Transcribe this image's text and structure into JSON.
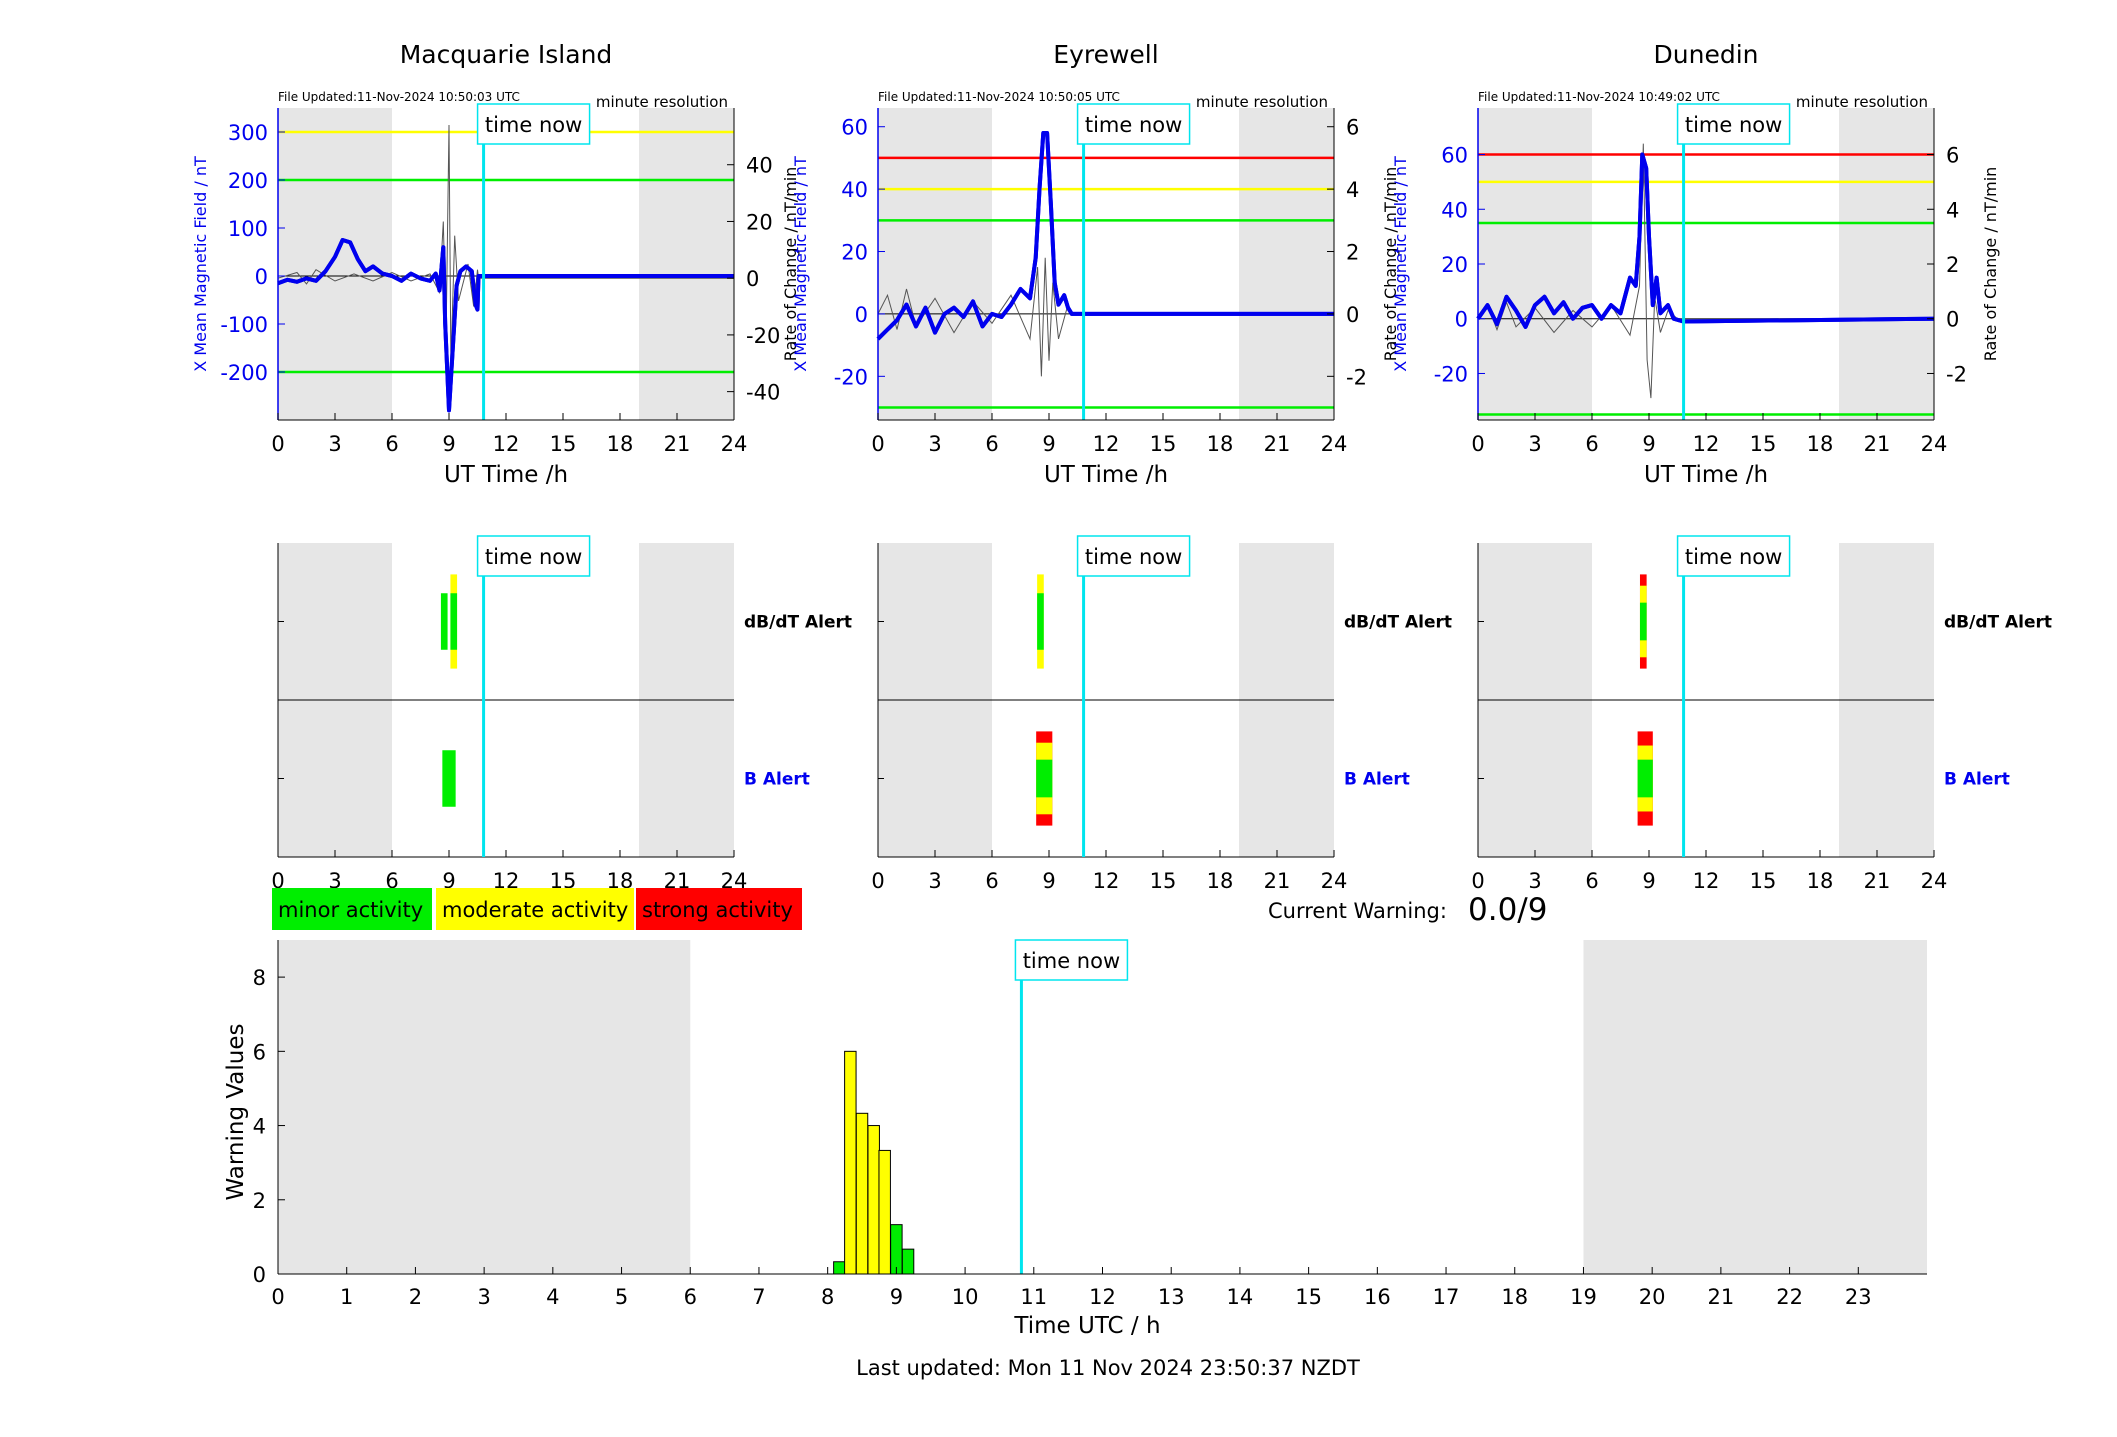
{
  "common": {
    "time_now_label": "time now",
    "time_now_hour": 10.82,
    "resolution_label": "minute resolution",
    "xlabel": "UT Time /h",
    "ylabel_left": "X Mean Magnetic Field / nT",
    "ylabel_right": "Rate of Change / nT/min",
    "x_ticks": [
      0,
      3,
      6,
      9,
      12,
      15,
      18,
      21,
      24
    ],
    "night_shading_hours": [
      [
        0,
        6
      ],
      [
        19,
        24
      ]
    ],
    "dbdt_alert_label": "dB/dT Alert",
    "b_alert_label": "B Alert"
  },
  "colors": {
    "minor": "#00ee00",
    "moderate": "#ffff00",
    "strong": "#ff0000",
    "field_line": "#0000ee",
    "time_now": "#00e5ee",
    "shading": "#e6e6e6"
  },
  "legend": {
    "minor": "minor activity",
    "moderate": "moderate activity",
    "strong": "strong activity"
  },
  "current_warning": {
    "label": "Current Warning:",
    "value": "0.0/9"
  },
  "footer": {
    "last_updated": "Last updated: Mon 11 Nov 2024 23:50:37 NZDT"
  },
  "chart_data": [
    {
      "type": "line",
      "title": "Macquarie Island",
      "file_updated": "File Updated:11-Nov-2024 10:50:03 UTC",
      "ylim": [
        -300,
        350
      ],
      "y2lim": [
        -50,
        60
      ],
      "yticks": [
        -200,
        -100,
        0,
        100,
        200,
        300
      ],
      "y2ticks": [
        -40,
        -20,
        0,
        20,
        40
      ],
      "thresholds": [
        {
          "value": 300,
          "level": "moderate"
        },
        {
          "value": 200,
          "level": "minor"
        },
        {
          "value": -200,
          "level": "minor"
        }
      ],
      "series": [
        {
          "axis": "left",
          "points": [
            [
              0,
              -15
            ],
            [
              0.5,
              -8
            ],
            [
              1,
              -12
            ],
            [
              1.5,
              -5
            ],
            [
              2,
              -10
            ],
            [
              2.5,
              10
            ],
            [
              3,
              40
            ],
            [
              3.4,
              75
            ],
            [
              3.8,
              70
            ],
            [
              4.2,
              35
            ],
            [
              4.6,
              10
            ],
            [
              5,
              20
            ],
            [
              5.5,
              5
            ],
            [
              6,
              0
            ],
            [
              6.5,
              -10
            ],
            [
              7,
              5
            ],
            [
              7.5,
              -5
            ],
            [
              8,
              -10
            ],
            [
              8.3,
              5
            ],
            [
              8.5,
              -30
            ],
            [
              8.7,
              60
            ],
            [
              8.8,
              -100
            ],
            [
              9.0,
              -280
            ],
            [
              9.2,
              -150
            ],
            [
              9.4,
              -20
            ],
            [
              9.6,
              10
            ],
            [
              9.9,
              20
            ],
            [
              10.2,
              10
            ],
            [
              10.4,
              -60
            ],
            [
              10.5,
              -70
            ],
            [
              10.55,
              0
            ],
            [
              24,
              0
            ]
          ]
        },
        {
          "axis": "right",
          "points": [
            [
              0,
              0
            ],
            [
              1,
              2
            ],
            [
              1.5,
              -2
            ],
            [
              2,
              3
            ],
            [
              3,
              -1
            ],
            [
              4,
              1.5
            ],
            [
              5,
              -1
            ],
            [
              6,
              2
            ],
            [
              7,
              -1
            ],
            [
              8,
              1.5
            ],
            [
              8.5,
              -5
            ],
            [
              8.7,
              20
            ],
            [
              8.85,
              -20
            ],
            [
              9.0,
              54
            ],
            [
              9.1,
              -30
            ],
            [
              9.3,
              15
            ],
            [
              9.5,
              -8
            ],
            [
              10,
              5
            ],
            [
              10.3,
              -10
            ],
            [
              10.5,
              3
            ],
            [
              10.55,
              0
            ],
            [
              24,
              0
            ]
          ]
        }
      ],
      "alerts": {
        "dbdt": [
          {
            "hour": 8.75,
            "width": 0.35,
            "bands": [
              {
                "level": "minor",
                "from": 0.2,
                "to": 0.8
              }
            ]
          },
          {
            "hour": 9.25,
            "width": 0.35,
            "bands": [
              {
                "level": "moderate",
                "from": 0.0,
                "to": 1.0
              },
              {
                "level": "minor",
                "from": 0.2,
                "to": 0.8
              }
            ]
          }
        ],
        "b": [
          {
            "hour": 9.0,
            "width": 0.7,
            "bands": [
              {
                "level": "minor",
                "from": 0.2,
                "to": 0.8
              }
            ]
          }
        ]
      }
    },
    {
      "type": "line",
      "title": "Eyrewell",
      "file_updated": "File Updated:11-Nov-2024 10:50:05 UTC",
      "ylim": [
        -34,
        66
      ],
      "y2lim": [
        -3.4,
        6.6
      ],
      "yticks": [
        -20,
        0,
        20,
        40,
        60
      ],
      "y2ticks": [
        -2,
        0,
        2,
        4,
        6
      ],
      "thresholds": [
        {
          "value": 50,
          "level": "strong"
        },
        {
          "value": 40,
          "level": "moderate"
        },
        {
          "value": 30,
          "level": "minor"
        },
        {
          "value": -30,
          "level": "minor"
        }
      ],
      "series": [
        {
          "axis": "left",
          "points": [
            [
              0,
              -8
            ],
            [
              0.5,
              -5
            ],
            [
              1,
              -2
            ],
            [
              1.5,
              3
            ],
            [
              2,
              -4
            ],
            [
              2.5,
              2
            ],
            [
              3,
              -6
            ],
            [
              3.5,
              0
            ],
            [
              4,
              2
            ],
            [
              4.5,
              -1
            ],
            [
              5,
              4
            ],
            [
              5.5,
              -4
            ],
            [
              6,
              0
            ],
            [
              6.5,
              -1
            ],
            [
              7,
              3
            ],
            [
              7.5,
              8
            ],
            [
              8,
              5
            ],
            [
              8.3,
              18
            ],
            [
              8.5,
              40
            ],
            [
              8.7,
              58
            ],
            [
              8.9,
              58
            ],
            [
              9.1,
              35
            ],
            [
              9.3,
              10
            ],
            [
              9.5,
              3
            ],
            [
              9.8,
              6
            ],
            [
              10,
              2
            ],
            [
              10.2,
              0
            ],
            [
              24,
              0
            ]
          ]
        },
        {
          "axis": "right",
          "points": [
            [
              0,
              0
            ],
            [
              0.5,
              0.6
            ],
            [
              1,
              -0.5
            ],
            [
              1.5,
              0.8
            ],
            [
              2,
              -0.4
            ],
            [
              3,
              0.5
            ],
            [
              4,
              -0.6
            ],
            [
              5,
              0.4
            ],
            [
              6,
              -0.3
            ],
            [
              7,
              0.6
            ],
            [
              8,
              -0.8
            ],
            [
              8.4,
              1.5
            ],
            [
              8.6,
              -2.0
            ],
            [
              8.8,
              1.8
            ],
            [
              9.0,
              -1.5
            ],
            [
              9.2,
              1.0
            ],
            [
              9.5,
              -0.8
            ],
            [
              10,
              0.3
            ],
            [
              10.2,
              0
            ],
            [
              24,
              0
            ]
          ]
        }
      ],
      "alerts": {
        "dbdt": [
          {
            "hour": 8.55,
            "width": 0.35,
            "bands": [
              {
                "level": "moderate",
                "from": 0.0,
                "to": 1.0
              },
              {
                "level": "minor",
                "from": 0.2,
                "to": 0.8
              }
            ]
          }
        ],
        "b": [
          {
            "hour": 8.75,
            "width": 0.85,
            "bands": [
              {
                "level": "strong",
                "from": 0.0,
                "to": 1.0
              },
              {
                "level": "moderate",
                "from": 0.12,
                "to": 0.88
              },
              {
                "level": "minor",
                "from": 0.3,
                "to": 0.7
              }
            ]
          }
        ]
      }
    },
    {
      "type": "line",
      "title": "Dunedin",
      "file_updated": "File Updated:11-Nov-2024 10:49:02 UTC",
      "ylim": [
        -37,
        77
      ],
      "y2lim": [
        -3.7,
        7.7
      ],
      "yticks": [
        -20,
        0,
        20,
        40,
        60
      ],
      "y2ticks": [
        -2,
        0,
        2,
        4,
        6
      ],
      "thresholds": [
        {
          "value": 60,
          "level": "strong"
        },
        {
          "value": 50,
          "level": "moderate"
        },
        {
          "value": 35,
          "level": "minor"
        },
        {
          "value": -35,
          "level": "minor"
        }
      ],
      "series": [
        {
          "axis": "left",
          "points": [
            [
              0,
              0
            ],
            [
              0.5,
              5
            ],
            [
              1,
              -2
            ],
            [
              1.5,
              8
            ],
            [
              2,
              3
            ],
            [
              2.5,
              -3
            ],
            [
              3,
              5
            ],
            [
              3.5,
              8
            ],
            [
              4,
              2
            ],
            [
              4.5,
              6
            ],
            [
              5,
              0
            ],
            [
              5.5,
              4
            ],
            [
              6,
              5
            ],
            [
              6.5,
              0
            ],
            [
              7,
              5
            ],
            [
              7.5,
              2
            ],
            [
              8,
              15
            ],
            [
              8.3,
              12
            ],
            [
              8.5,
              30
            ],
            [
              8.65,
              60
            ],
            [
              8.85,
              55
            ],
            [
              9.0,
              30
            ],
            [
              9.2,
              5
            ],
            [
              9.4,
              15
            ],
            [
              9.6,
              2
            ],
            [
              10,
              5
            ],
            [
              10.3,
              0
            ],
            [
              10.8,
              -1
            ],
            [
              24,
              0
            ]
          ]
        },
        {
          "axis": "right",
          "points": [
            [
              0,
              0
            ],
            [
              0.5,
              0.5
            ],
            [
              1,
              -0.4
            ],
            [
              1.5,
              0.6
            ],
            [
              2,
              -0.3
            ],
            [
              3,
              0.4
            ],
            [
              4,
              -0.5
            ],
            [
              5,
              0.3
            ],
            [
              6,
              -0.3
            ],
            [
              7,
              0.5
            ],
            [
              8,
              -0.6
            ],
            [
              8.5,
              1.2
            ],
            [
              8.7,
              6.4
            ],
            [
              8.9,
              -1.5
            ],
            [
              9.1,
              -2.9
            ],
            [
              9.3,
              0.8
            ],
            [
              9.6,
              -0.5
            ],
            [
              10,
              0.3
            ],
            [
              10.5,
              0
            ],
            [
              24,
              0
            ]
          ]
        }
      ],
      "alerts": {
        "dbdt": [
          {
            "hour": 8.7,
            "width": 0.35,
            "bands": [
              {
                "level": "strong",
                "from": 0.0,
                "to": 1.0
              },
              {
                "level": "moderate",
                "from": 0.12,
                "to": 0.88
              },
              {
                "level": "minor",
                "from": 0.3,
                "to": 0.7
              }
            ]
          }
        ],
        "b": [
          {
            "hour": 8.8,
            "width": 0.8,
            "bands": [
              {
                "level": "strong",
                "from": 0.0,
                "to": 1.0
              },
              {
                "level": "moderate",
                "from": 0.15,
                "to": 0.85
              },
              {
                "level": "minor",
                "from": 0.3,
                "to": 0.7
              }
            ]
          }
        ]
      }
    },
    {
      "type": "bar",
      "xlabel": "Time UTC / h",
      "ylabel": "Warning Values",
      "xlim": [
        0,
        24
      ],
      "ylim": [
        0,
        9
      ],
      "xticks": [
        0,
        1,
        2,
        3,
        4,
        5,
        6,
        7,
        8,
        9,
        10,
        11,
        12,
        13,
        14,
        15,
        16,
        17,
        18,
        19,
        20,
        21,
        22,
        23
      ],
      "yticks": [
        0,
        2,
        4,
        6,
        8
      ],
      "bar_width_h": 0.1667,
      "bars": [
        {
          "x": 8.17,
          "value": 0.33,
          "level": "minor"
        },
        {
          "x": 8.33,
          "value": 6,
          "level": "moderate"
        },
        {
          "x": 8.5,
          "value": 4.33,
          "level": "moderate"
        },
        {
          "x": 8.67,
          "value": 4,
          "level": "moderate"
        },
        {
          "x": 8.83,
          "value": 3.33,
          "level": "moderate"
        },
        {
          "x": 9.0,
          "value": 1.33,
          "level": "minor"
        },
        {
          "x": 9.17,
          "value": 0.67,
          "level": "minor"
        }
      ]
    }
  ]
}
